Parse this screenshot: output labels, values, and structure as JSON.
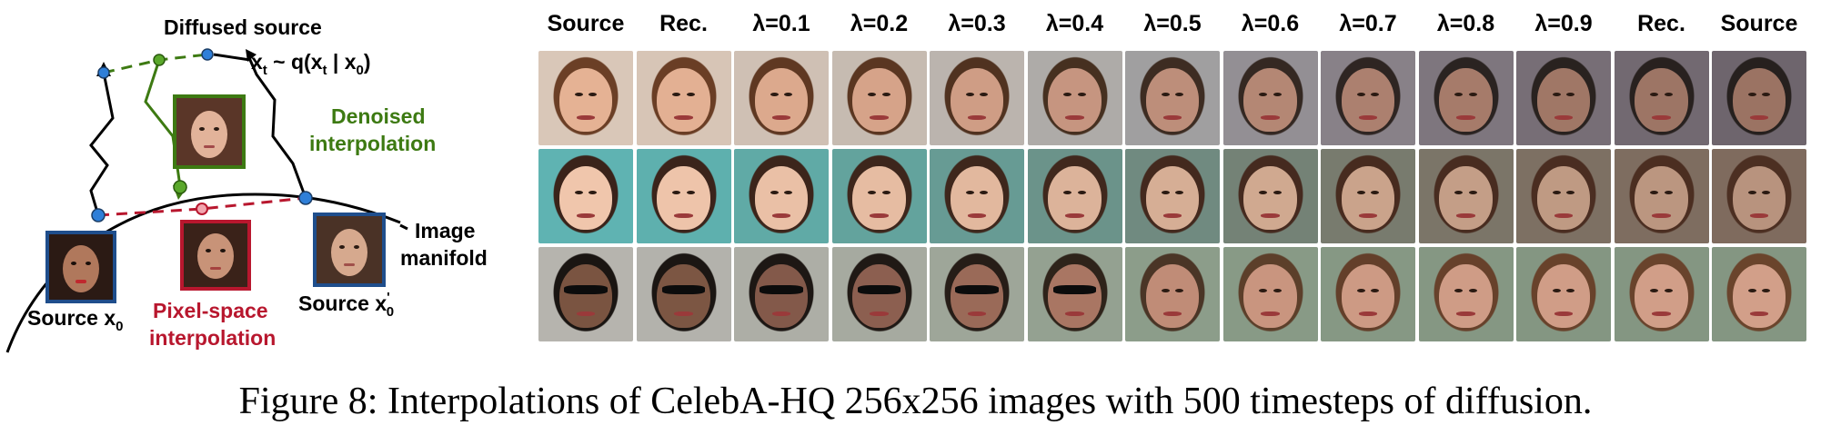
{
  "diagram": {
    "diffused_source": "Diffused source",
    "xt_formula": "x",
    "xt_sub": "t",
    "xt_rest_1": " ~ q(x",
    "xt_rest_sub": "t",
    "xt_rest_2": " | x",
    "xt_rest_sub0": "0",
    "xt_rest_3": ")",
    "denoised_line1": "Denoised",
    "denoised_line2": "interpolation",
    "image_line1": "Image",
    "image_line2": "manifold",
    "source_x0": "Source x",
    "source_x0_sub": "0",
    "pixel_line1": "Pixel-space",
    "pixel_line2": "interpolation",
    "source_x0p": "Source x",
    "source_x0p_sup": "'",
    "source_x0p_sub": "0",
    "colors": {
      "denoised": "#3d7a12",
      "pixel": "#b8172e",
      "point": "#2f7fd8",
      "frame": "#1f4e8c"
    }
  },
  "grid": {
    "headers": [
      "Source",
      "Rec.",
      "λ=0.1",
      "λ=0.2",
      "λ=0.3",
      "λ=0.4",
      "λ=0.5",
      "λ=0.6",
      "λ=0.7",
      "λ=0.8",
      "λ=0.9",
      "Rec.",
      "Source"
    ],
    "rows": [
      {
        "name": "row-1",
        "hair": [
          "#6b3f26",
          "#6a3e25",
          "#5f3822",
          "#5a3621",
          "#503220",
          "#463020",
          "#3d2c22",
          "#342822",
          "#2e2522",
          "#2a2321",
          "#29221f",
          "#28211f",
          "#26201e"
        ],
        "skin": [
          "#e5b294",
          "#e3b093",
          "#dca98d",
          "#d6a389",
          "#cf9d85",
          "#c69580",
          "#bd8e7a",
          "#b48774",
          "#ac806f",
          "#a67b6a",
          "#a07766",
          "#9d7565",
          "#9b7363"
        ],
        "shades": [
          false,
          false,
          false,
          false,
          false,
          false,
          false,
          false,
          false,
          false,
          false,
          false,
          false
        ],
        "bg": [
          "#d9c7b8",
          "#d7c5b6",
          "#cfc0b4",
          "#c6bbb1",
          "#bbb4ae",
          "#aeaba8",
          "#a09fa0",
          "#938f94",
          "#888188",
          "#7e767e",
          "#776e76",
          "#726971",
          "#6e656d"
        ]
      },
      {
        "name": "row-2",
        "hair": [
          "#3a231a",
          "#3b241b",
          "#3c251b",
          "#3d261c",
          "#3e271c",
          "#40281d",
          "#43291e",
          "#452a1f",
          "#472b1f",
          "#482c20",
          "#4a2d21",
          "#4b2e21",
          "#4c2f22"
        ],
        "skin": [
          "#f0c6ac",
          "#eec4aa",
          "#eac0a6",
          "#e6bca2",
          "#e2b89e",
          "#dcb39a",
          "#d6ae95",
          "#d0a990",
          "#caa38b",
          "#c49e87",
          "#bf9a83",
          "#bb9680",
          "#b8937e"
        ],
        "shades": [
          false,
          false,
          false,
          false,
          false,
          false,
          false,
          false,
          false,
          false,
          false,
          false,
          false
        ],
        "bg": [
          "#5fb3b2",
          "#5eb0ae",
          "#60aaa6",
          "#63a39d",
          "#679b94",
          "#6b938a",
          "#708a80",
          "#748276",
          "#787b6e",
          "#7b7568",
          "#7d7063",
          "#7e6d60",
          "#7f6b5e"
        ]
      },
      {
        "name": "row-3",
        "hair": [
          "#1a1512",
          "#1b1613",
          "#1d1714",
          "#201915",
          "#261d17",
          "#2e231a",
          "#4a3526",
          "#5c3f2a",
          "#633f2a",
          "#67412b",
          "#68422b",
          "#69432c",
          "#6a442c"
        ],
        "skin": [
          "#7a5441",
          "#7c5643",
          "#83594a",
          "#8c5f50",
          "#9a6a58",
          "#a97663",
          "#c08c77",
          "#c9957f",
          "#cd9a84",
          "#cf9c86",
          "#d09d87",
          "#d19e88",
          "#d29f89"
        ],
        "shades": [
          true,
          true,
          true,
          true,
          true,
          true,
          false,
          false,
          false,
          false,
          false,
          false,
          false
        ],
        "bg": [
          "#b6b4ae",
          "#b3b2ac",
          "#adaea6",
          "#a6aaa0",
          "#9ea699",
          "#94a191",
          "#8c9d8a",
          "#889a86",
          "#869884",
          "#859783",
          "#849682",
          "#849682",
          "#849682"
        ]
      }
    ]
  },
  "caption": "Figure 8: Interpolations of CelebA-HQ 256x256 images with 500 timesteps of diffusion."
}
